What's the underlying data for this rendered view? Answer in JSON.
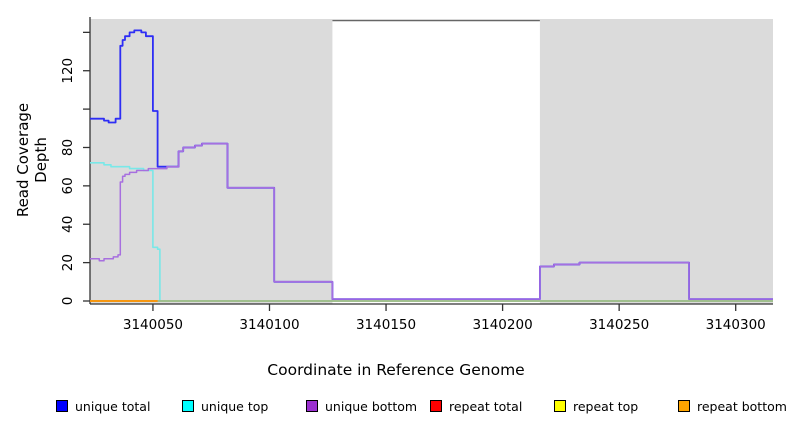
{
  "chart_data": {
    "type": "line",
    "line_style": "step-after",
    "title": "",
    "xlabel": "Coordinate in Reference Genome",
    "ylabel": "Read Coverage Depth",
    "xlim": [
      3140023,
      3140316
    ],
    "ylim": [
      0,
      148
    ],
    "grid": false,
    "legend_position": "bottom",
    "x_ticks": [
      {
        "value": 3140050,
        "label": "3140050"
      },
      {
        "value": 3140100,
        "label": "3140100"
      },
      {
        "value": 3140150,
        "label": "3140150"
      },
      {
        "value": 3140200,
        "label": "3140200"
      },
      {
        "value": 3140250,
        "label": "3140250"
      },
      {
        "value": 3140300,
        "label": "3140300"
      }
    ],
    "y_ticks": [
      {
        "value": 0,
        "label": "0"
      },
      {
        "value": 20,
        "label": "20"
      },
      {
        "value": 40,
        "label": "40"
      },
      {
        "value": 60,
        "label": "60"
      },
      {
        "value": 80,
        "label": "80"
      },
      {
        "value": 100,
        "label": ""
      },
      {
        "value": 120,
        "label": "120"
      },
      {
        "value": 140,
        "label": ""
      }
    ],
    "shaded_regions": [
      {
        "x0": 3140023,
        "x1": 3140127,
        "color": "#DBDBDB"
      },
      {
        "x0": 3140216,
        "x1": 3140316,
        "color": "#DBDBDB"
      }
    ],
    "gap_region": {
      "x0": 3140127,
      "x1": 3140216,
      "color": "#FFFFFF"
    },
    "box_color": "#666666",
    "axis_color": "#333333",
    "series": [
      {
        "name": "unique total",
        "legend_color": "#0000FF",
        "line_color": "#2E2EF5",
        "width": 1.8,
        "points": [
          [
            3140023,
            95
          ],
          [
            3140029,
            94
          ],
          [
            3140031,
            93
          ],
          [
            3140034,
            95
          ],
          [
            3140036,
            133
          ],
          [
            3140037,
            136
          ],
          [
            3140038,
            138
          ],
          [
            3140040,
            140
          ],
          [
            3140042,
            141
          ],
          [
            3140045,
            140
          ],
          [
            3140047,
            138
          ],
          [
            3140050,
            99
          ],
          [
            3140052,
            70
          ],
          [
            3140061,
            78
          ],
          [
            3140063,
            80
          ],
          [
            3140068,
            81
          ],
          [
            3140071,
            82
          ],
          [
            3140082,
            59
          ],
          [
            3140102,
            10
          ],
          [
            3140127,
            1
          ],
          [
            3140216,
            18
          ],
          [
            3140222,
            19
          ],
          [
            3140233,
            20
          ],
          [
            3140280,
            1
          ],
          [
            3140316,
            1
          ]
        ]
      },
      {
        "name": "unique top",
        "legend_color": "#00FFFF",
        "line_color": "#79E8E8",
        "width": 1.6,
        "points": [
          [
            3140023,
            72
          ],
          [
            3140029,
            71
          ],
          [
            3140032,
            70
          ],
          [
            3140040,
            69
          ],
          [
            3140046,
            68
          ],
          [
            3140050,
            28
          ],
          [
            3140052,
            27
          ],
          [
            3140053,
            0
          ],
          [
            3140316,
            0
          ]
        ]
      },
      {
        "name": "unique bottom",
        "legend_color": "#9B30D0",
        "line_color": "#A76FDF",
        "width": 1.5,
        "points": [
          [
            3140023,
            22
          ],
          [
            3140027,
            21
          ],
          [
            3140029,
            22
          ],
          [
            3140033,
            23
          ],
          [
            3140035,
            24
          ],
          [
            3140036,
            62
          ],
          [
            3140037,
            65
          ],
          [
            3140038,
            66
          ],
          [
            3140040,
            67
          ],
          [
            3140043,
            68
          ],
          [
            3140048,
            69
          ],
          [
            3140056,
            70
          ],
          [
            3140061,
            78
          ],
          [
            3140063,
            80
          ],
          [
            3140068,
            81
          ],
          [
            3140071,
            82
          ],
          [
            3140082,
            59
          ],
          [
            3140102,
            10
          ],
          [
            3140127,
            1
          ],
          [
            3140216,
            18
          ],
          [
            3140222,
            19
          ],
          [
            3140233,
            20
          ],
          [
            3140280,
            1
          ],
          [
            3140316,
            1
          ]
        ]
      },
      {
        "name": "repeat total",
        "legend_color": "#FF0000",
        "line_color": "#E02020",
        "width": 1.5,
        "points": [
          [
            3140023,
            0
          ],
          [
            3140316,
            0
          ]
        ]
      },
      {
        "name": "repeat top",
        "legend_color": "#FFFF00",
        "line_color": "#93D493",
        "width": 1.6,
        "points": [
          [
            3140023,
            0
          ],
          [
            3140316,
            0
          ]
        ]
      },
      {
        "name": "repeat bottom",
        "legend_color": "#FFA500",
        "line_color": "#FF9500",
        "width": 1.8,
        "points": [
          [
            3140023,
            0
          ],
          [
            3140052,
            0
          ]
        ]
      }
    ]
  },
  "legend": {
    "items": [
      {
        "label": "unique total",
        "color": "#0000FF"
      },
      {
        "label": "unique top",
        "color": "#00FFFF"
      },
      {
        "label": "unique bottom",
        "color": "#9B30D0"
      },
      {
        "label": "repeat total",
        "color": "#FF0000"
      },
      {
        "label": "repeat top",
        "color": "#FFFF00"
      },
      {
        "label": "repeat bottom",
        "color": "#FFA500"
      }
    ]
  }
}
